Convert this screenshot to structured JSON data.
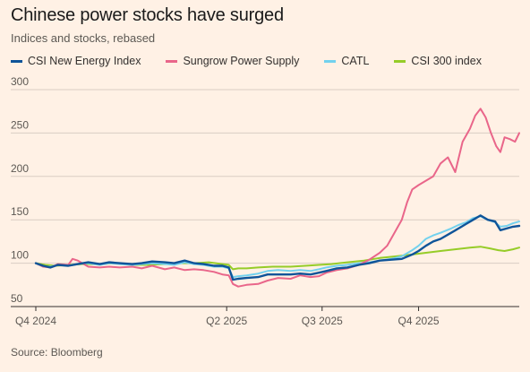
{
  "header": {
    "title": "Chinese power stocks have surged",
    "subtitle": "Indices and stocks, rebased"
  },
  "footer": {
    "source": "Source: Bloomberg"
  },
  "colors": {
    "background": "#fff1e5",
    "grid": "#d9cdc3",
    "axis": "#33302e",
    "CSI New Energy Index": "#0f5499",
    "Sungrow Power Supply": "#e9668a",
    "CATL": "#72d1ee",
    "CSI 300 index": "#96cc28"
  },
  "chart_data": {
    "type": "line",
    "x_ticks": [
      "Q4 2024",
      "Q2 2025",
      "Q3 2025",
      "Q4 2025"
    ],
    "x_tick_dates": [
      "2024-10-01",
      "2025-04-01",
      "2025-07-01",
      "2025-10-01"
    ],
    "x_range": [
      "2024-10-01",
      "2026-01-05"
    ],
    "y_ticks": [
      50,
      100,
      150,
      200,
      250,
      300
    ],
    "ylim": [
      50,
      300
    ],
    "grid": true,
    "legend_position": "top",
    "series": [
      {
        "name": "CSI New Energy Index",
        "points": [
          [
            "2024-10-01",
            100
          ],
          [
            "2024-10-08",
            97
          ],
          [
            "2024-10-15",
            95
          ],
          [
            "2024-10-22",
            98
          ],
          [
            "2024-11-01",
            97
          ],
          [
            "2024-11-10",
            99
          ],
          [
            "2024-11-20",
            101
          ],
          [
            "2024-12-01",
            99
          ],
          [
            "2024-12-10",
            101
          ],
          [
            "2024-12-20",
            100
          ],
          [
            "2025-01-01",
            99
          ],
          [
            "2025-01-10",
            100
          ],
          [
            "2025-01-20",
            102
          ],
          [
            "2025-02-01",
            101
          ],
          [
            "2025-02-10",
            100
          ],
          [
            "2025-02-20",
            103
          ],
          [
            "2025-03-01",
            100
          ],
          [
            "2025-03-10",
            99
          ],
          [
            "2025-03-20",
            97
          ],
          [
            "2025-03-28",
            97
          ],
          [
            "2025-04-03",
            95
          ],
          [
            "2025-04-07",
            81
          ],
          [
            "2025-04-12",
            82
          ],
          [
            "2025-04-20",
            83
          ],
          [
            "2025-05-01",
            84
          ],
          [
            "2025-05-10",
            87
          ],
          [
            "2025-05-20",
            87
          ],
          [
            "2025-06-01",
            87
          ],
          [
            "2025-06-10",
            88
          ],
          [
            "2025-06-20",
            87
          ],
          [
            "2025-06-28",
            89
          ],
          [
            "2025-07-05",
            91
          ],
          [
            "2025-07-15",
            94
          ],
          [
            "2025-07-25",
            95
          ],
          [
            "2025-08-05",
            98
          ],
          [
            "2025-08-15",
            100
          ],
          [
            "2025-08-25",
            103
          ],
          [
            "2025-09-05",
            104
          ],
          [
            "2025-09-15",
            105
          ],
          [
            "2025-09-25",
            110
          ],
          [
            "2025-10-01",
            114
          ],
          [
            "2025-10-08",
            120
          ],
          [
            "2025-10-15",
            125
          ],
          [
            "2025-10-22",
            128
          ],
          [
            "2025-11-01",
            135
          ],
          [
            "2025-11-08",
            140
          ],
          [
            "2025-11-15",
            145
          ],
          [
            "2025-11-22",
            150
          ],
          [
            "2025-11-29",
            155
          ],
          [
            "2025-12-06",
            150
          ],
          [
            "2025-12-13",
            148
          ],
          [
            "2025-12-18",
            138
          ],
          [
            "2025-12-24",
            140
          ],
          [
            "2025-12-30",
            142
          ],
          [
            "2026-01-05",
            143
          ]
        ]
      },
      {
        "name": "Sungrow Power Supply",
        "points": [
          [
            "2024-10-01",
            100
          ],
          [
            "2024-10-08",
            96
          ],
          [
            "2024-10-15",
            95
          ],
          [
            "2024-10-22",
            99
          ],
          [
            "2024-11-01",
            98
          ],
          [
            "2024-11-05",
            105
          ],
          [
            "2024-11-10",
            103
          ],
          [
            "2024-11-20",
            96
          ],
          [
            "2024-12-01",
            95
          ],
          [
            "2024-12-10",
            96
          ],
          [
            "2024-12-20",
            95
          ],
          [
            "2025-01-01",
            96
          ],
          [
            "2025-01-10",
            94
          ],
          [
            "2025-01-20",
            97
          ],
          [
            "2025-02-01",
            93
          ],
          [
            "2025-02-10",
            95
          ],
          [
            "2025-02-20",
            92
          ],
          [
            "2025-03-01",
            93
          ],
          [
            "2025-03-10",
            92
          ],
          [
            "2025-03-20",
            90
          ],
          [
            "2025-03-28",
            87
          ],
          [
            "2025-04-03",
            86
          ],
          [
            "2025-04-07",
            76
          ],
          [
            "2025-04-12",
            73
          ],
          [
            "2025-04-20",
            75
          ],
          [
            "2025-05-01",
            76
          ],
          [
            "2025-05-10",
            80
          ],
          [
            "2025-05-20",
            83
          ],
          [
            "2025-06-01",
            82
          ],
          [
            "2025-06-10",
            86
          ],
          [
            "2025-06-20",
            84
          ],
          [
            "2025-06-28",
            85
          ],
          [
            "2025-07-05",
            89
          ],
          [
            "2025-07-15",
            92
          ],
          [
            "2025-07-25",
            94
          ],
          [
            "2025-08-05",
            98
          ],
          [
            "2025-08-15",
            104
          ],
          [
            "2025-08-25",
            112
          ],
          [
            "2025-09-01",
            120
          ],
          [
            "2025-09-08",
            135
          ],
          [
            "2025-09-15",
            150
          ],
          [
            "2025-09-20",
            170
          ],
          [
            "2025-09-25",
            185
          ],
          [
            "2025-10-01",
            190
          ],
          [
            "2025-10-08",
            195
          ],
          [
            "2025-10-15",
            200
          ],
          [
            "2025-10-22",
            215
          ],
          [
            "2025-10-29",
            222
          ],
          [
            "2025-11-05",
            205
          ],
          [
            "2025-11-12",
            240
          ],
          [
            "2025-11-19",
            255
          ],
          [
            "2025-11-24",
            270
          ],
          [
            "2025-11-29",
            278
          ],
          [
            "2025-12-04",
            268
          ],
          [
            "2025-12-09",
            250
          ],
          [
            "2025-12-14",
            235
          ],
          [
            "2025-12-18",
            228
          ],
          [
            "2025-12-22",
            245
          ],
          [
            "2025-12-27",
            243
          ],
          [
            "2026-01-01",
            240
          ],
          [
            "2026-01-05",
            250
          ]
        ]
      },
      {
        "name": "CATL",
        "points": [
          [
            "2024-10-01",
            100
          ],
          [
            "2024-10-08",
            96
          ],
          [
            "2024-10-15",
            96
          ],
          [
            "2024-10-22",
            98
          ],
          [
            "2024-11-01",
            97
          ],
          [
            "2024-11-10",
            99
          ],
          [
            "2024-11-20",
            100
          ],
          [
            "2024-12-01",
            98
          ],
          [
            "2024-12-10",
            100
          ],
          [
            "2024-12-20",
            99
          ],
          [
            "2025-01-01",
            98
          ],
          [
            "2025-01-10",
            99
          ],
          [
            "2025-01-20",
            100
          ],
          [
            "2025-02-01",
            99
          ],
          [
            "2025-02-10",
            98
          ],
          [
            "2025-02-20",
            101
          ],
          [
            "2025-03-01",
            99
          ],
          [
            "2025-03-10",
            98
          ],
          [
            "2025-03-20",
            96
          ],
          [
            "2025-03-28",
            96
          ],
          [
            "2025-04-03",
            94
          ],
          [
            "2025-04-07",
            84
          ],
          [
            "2025-04-12",
            85
          ],
          [
            "2025-04-20",
            86
          ],
          [
            "2025-05-01",
            88
          ],
          [
            "2025-05-10",
            91
          ],
          [
            "2025-05-20",
            92
          ],
          [
            "2025-06-01",
            91
          ],
          [
            "2025-06-10",
            92
          ],
          [
            "2025-06-20",
            91
          ],
          [
            "2025-06-28",
            93
          ],
          [
            "2025-07-05",
            95
          ],
          [
            "2025-07-15",
            97
          ],
          [
            "2025-07-25",
            98
          ],
          [
            "2025-08-05",
            100
          ],
          [
            "2025-08-15",
            101
          ],
          [
            "2025-08-25",
            103
          ],
          [
            "2025-09-05",
            105
          ],
          [
            "2025-09-15",
            108
          ],
          [
            "2025-09-25",
            115
          ],
          [
            "2025-10-01",
            120
          ],
          [
            "2025-10-08",
            128
          ],
          [
            "2025-10-15",
            132
          ],
          [
            "2025-10-22",
            135
          ],
          [
            "2025-11-01",
            140
          ],
          [
            "2025-11-08",
            144
          ],
          [
            "2025-11-15",
            147
          ],
          [
            "2025-11-22",
            152
          ],
          [
            "2025-11-29",
            154
          ],
          [
            "2025-12-06",
            150
          ],
          [
            "2025-12-13",
            147
          ],
          [
            "2025-12-18",
            142
          ],
          [
            "2025-12-24",
            143
          ],
          [
            "2025-12-30",
            146
          ],
          [
            "2026-01-05",
            148
          ]
        ]
      },
      {
        "name": "CSI 300 index",
        "points": [
          [
            "2024-10-01",
            100
          ],
          [
            "2024-10-10",
            98
          ],
          [
            "2024-10-20",
            97
          ],
          [
            "2024-11-01",
            98
          ],
          [
            "2024-11-15",
            99
          ],
          [
            "2024-12-01",
            99
          ],
          [
            "2024-12-15",
            100
          ],
          [
            "2025-01-01",
            98
          ],
          [
            "2025-01-15",
            98
          ],
          [
            "2025-02-01",
            99
          ],
          [
            "2025-02-15",
            100
          ],
          [
            "2025-03-01",
            100
          ],
          [
            "2025-03-15",
            101
          ],
          [
            "2025-03-28",
            99
          ],
          [
            "2025-04-03",
            98
          ],
          [
            "2025-04-07",
            93
          ],
          [
            "2025-04-12",
            94
          ],
          [
            "2025-04-20",
            94
          ],
          [
            "2025-05-01",
            95
          ],
          [
            "2025-05-15",
            96
          ],
          [
            "2025-06-01",
            96
          ],
          [
            "2025-06-15",
            97
          ],
          [
            "2025-06-28",
            98
          ],
          [
            "2025-07-10",
            99
          ],
          [
            "2025-07-25",
            101
          ],
          [
            "2025-08-10",
            103
          ],
          [
            "2025-08-25",
            106
          ],
          [
            "2025-09-10",
            108
          ],
          [
            "2025-09-25",
            110
          ],
          [
            "2025-10-08",
            112
          ],
          [
            "2025-10-22",
            114
          ],
          [
            "2025-11-05",
            116
          ],
          [
            "2025-11-19",
            118
          ],
          [
            "2025-11-29",
            119
          ],
          [
            "2025-12-08",
            117
          ],
          [
            "2025-12-16",
            115
          ],
          [
            "2025-12-22",
            114
          ],
          [
            "2025-12-30",
            116
          ],
          [
            "2026-01-05",
            118
          ]
        ]
      }
    ]
  }
}
